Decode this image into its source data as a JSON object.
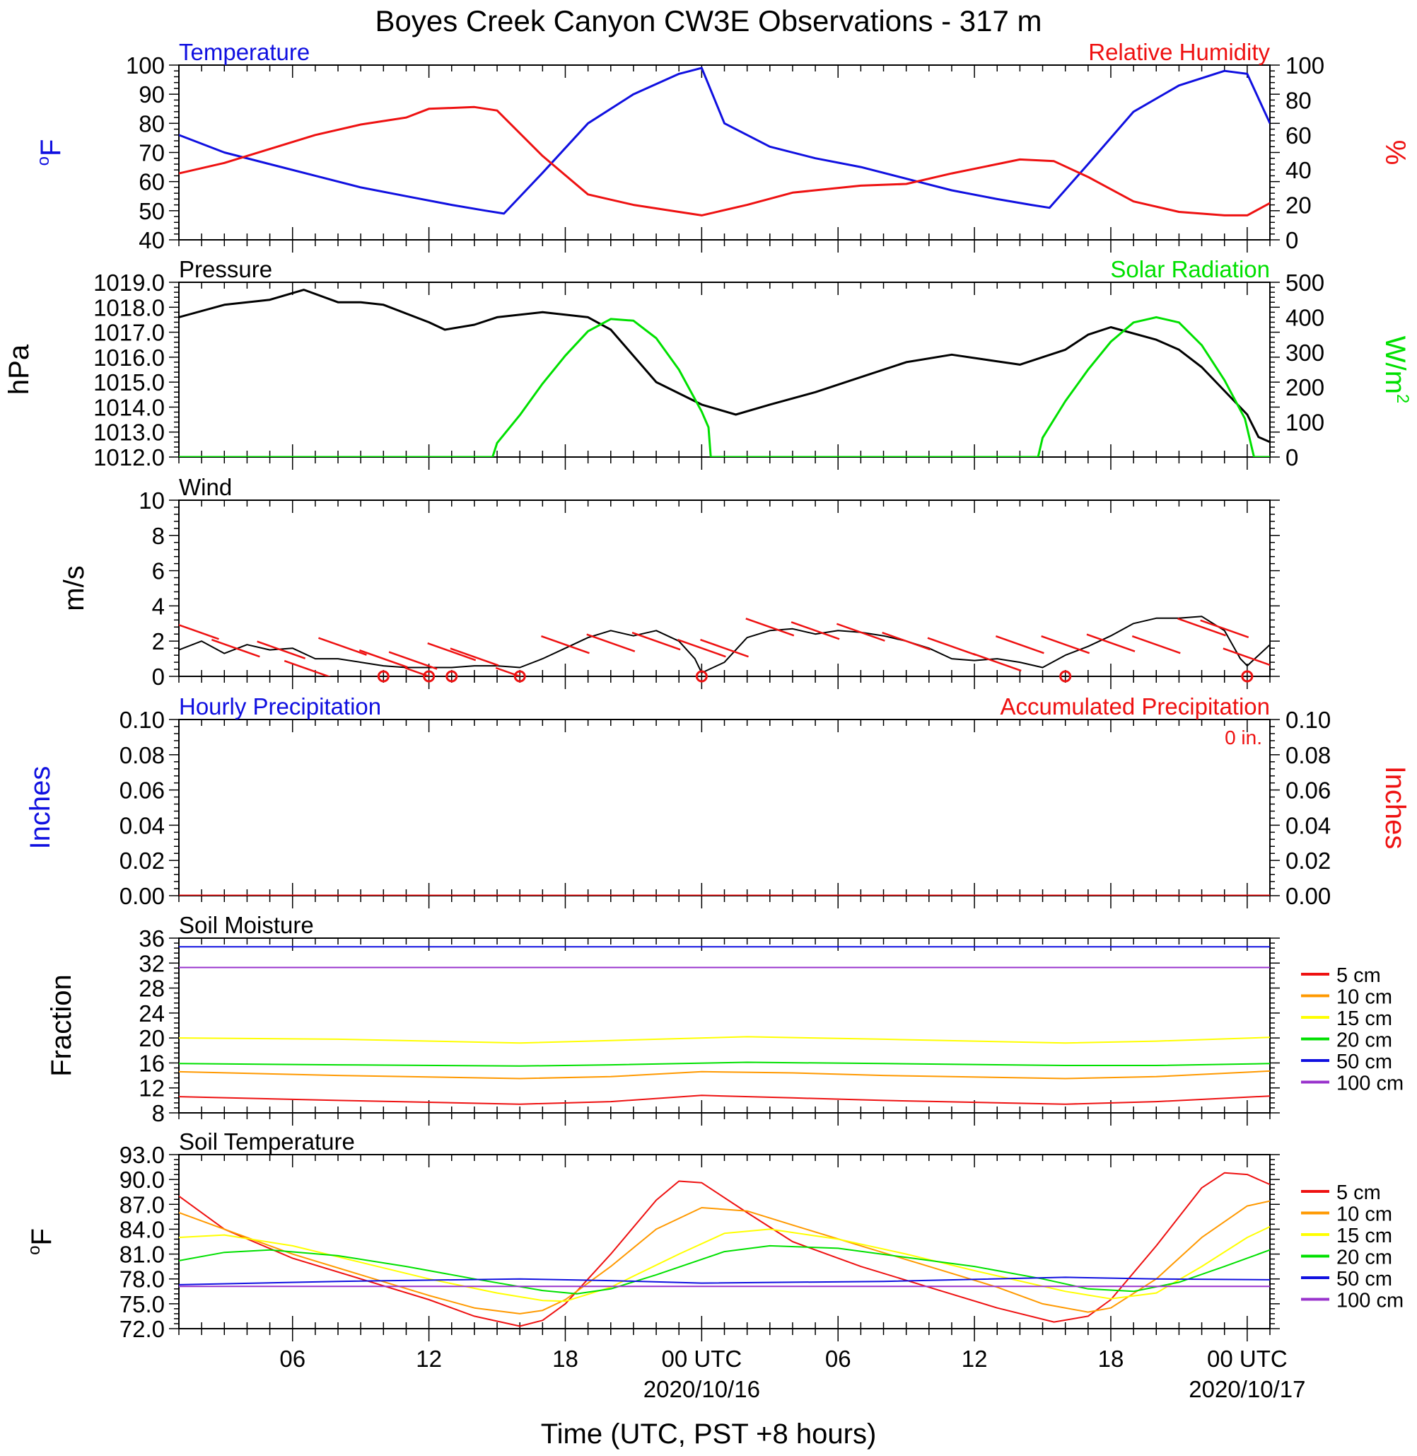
{
  "title": "Boyes Creek Canyon CW3E Observations - 317 m",
  "xlabel": "Time (UTC, PST +8 hours)",
  "x_ticks": [
    {
      "hour": 6,
      "label": "06",
      "date": ""
    },
    {
      "hour": 12,
      "label": "12",
      "date": ""
    },
    {
      "hour": 18,
      "label": "18",
      "date": ""
    },
    {
      "hour": 24,
      "label": "00 UTC",
      "date": "2020/10/16"
    },
    {
      "hour": 30,
      "label": "06",
      "date": ""
    },
    {
      "hour": 36,
      "label": "12",
      "date": ""
    },
    {
      "hour": 42,
      "label": "18",
      "date": ""
    },
    {
      "hour": 48,
      "label": "00 UTC",
      "date": "2020/10/17"
    }
  ],
  "colors": {
    "blue": "#1010e0",
    "red": "#ee1111",
    "green": "#00e000",
    "black": "#000000",
    "orange": "#ff9900",
    "yellow": "#ffff00",
    "purple": "#9933cc"
  },
  "chart_data": [
    {
      "type": "line",
      "panel": "temperature_rh",
      "x_range_hours": [
        1,
        49
      ],
      "left_title": "Temperature",
      "right_title": "Relative Humidity",
      "ylabel_left": "oF",
      "ylabel_right": "%",
      "ylim_left": [
        40,
        100
      ],
      "ylim_right": [
        0,
        100
      ],
      "yticks_left": [
        "40",
        "50",
        "60",
        "70",
        "80",
        "90",
        "100"
      ],
      "yticks_right": [
        "0",
        "20",
        "40",
        "60",
        "80",
        "100"
      ],
      "series": [
        {
          "name": "Temperature",
          "axis": "left",
          "color": "#1010e0",
          "x": [
            1,
            3,
            5,
            7,
            9,
            11,
            13,
            14.5,
            15.3,
            17,
            19,
            21,
            23,
            24,
            25,
            27,
            29,
            31,
            33,
            35,
            37,
            38.5,
            39.3,
            41,
            43,
            45,
            47,
            48,
            49
          ],
          "y": [
            76,
            70,
            66,
            62,
            58,
            55,
            52,
            50,
            49,
            63,
            80,
            90,
            97,
            99,
            80,
            72,
            68,
            65,
            61,
            57,
            54,
            52,
            51,
            66,
            84,
            93,
            98,
            97,
            80
          ]
        },
        {
          "name": "Relative Humidity",
          "axis": "right",
          "color": "#ee1111",
          "x": [
            1,
            3,
            5,
            7,
            9,
            11,
            12,
            14,
            15,
            17,
            19,
            21,
            23,
            24,
            26,
            28,
            31,
            33,
            35,
            38,
            39.5,
            41,
            43,
            45,
            47,
            48,
            49
          ],
          "y": [
            38,
            44,
            52,
            60,
            66,
            70,
            75,
            76,
            74,
            48,
            26,
            20,
            16,
            14,
            20,
            27,
            31,
            32,
            38,
            46,
            45,
            36,
            22,
            16,
            14,
            14,
            21
          ]
        }
      ]
    },
    {
      "type": "line",
      "panel": "pressure_solar",
      "x_range_hours": [
        1,
        49
      ],
      "left_title": "Pressure",
      "right_title": "Solar Radiation",
      "ylabel_left": "hPa",
      "ylabel_right": "W/m2",
      "ylim_left": [
        1012,
        1019
      ],
      "ylim_right": [
        0,
        500
      ],
      "yticks_left": [
        "1012.0",
        "1013.0",
        "1014.0",
        "1015.0",
        "1016.0",
        "1017.0",
        "1018.0",
        "1019.0"
      ],
      "yticks_right": [
        "0",
        "100",
        "200",
        "300",
        "400",
        "500"
      ],
      "series": [
        {
          "name": "Pressure",
          "axis": "left",
          "color": "#000000",
          "x": [
            1,
            3,
            5,
            6.5,
            8,
            9,
            10,
            12,
            12.7,
            14,
            15,
            17,
            19,
            20,
            22,
            24,
            25.5,
            27,
            29,
            31,
            33,
            35,
            36.5,
            38,
            40,
            41,
            42,
            44,
            45,
            46,
            48,
            48.5,
            49
          ],
          "y": [
            1017.6,
            1018.1,
            1018.3,
            1018.7,
            1018.2,
            1018.2,
            1018.1,
            1017.4,
            1017.1,
            1017.3,
            1017.6,
            1017.8,
            1017.6,
            1017.1,
            1015.0,
            1014.1,
            1013.7,
            1014.1,
            1014.6,
            1015.2,
            1015.8,
            1016.1,
            1015.9,
            1015.7,
            1016.3,
            1016.9,
            1017.2,
            1016.7,
            1016.3,
            1015.6,
            1013.7,
            1012.8,
            1012.6
          ]
        },
        {
          "name": "Solar Radiation",
          "axis": "right",
          "color": "#00e000",
          "x": [
            1,
            14.8,
            15.0,
            16,
            17,
            18,
            19,
            20,
            21,
            22,
            23,
            24,
            24.3,
            24.4,
            38.8,
            39.0,
            40,
            41,
            42,
            43,
            44,
            45,
            46,
            47,
            47.9,
            48.3,
            49
          ],
          "y": [
            0,
            0,
            40,
            120,
            210,
            290,
            360,
            395,
            390,
            340,
            250,
            130,
            85,
            0,
            0,
            55,
            160,
            250,
            330,
            385,
            400,
            385,
            320,
            220,
            110,
            0,
            0
          ]
        }
      ]
    },
    {
      "type": "line",
      "panel": "wind",
      "x_range_hours": [
        1,
        49
      ],
      "left_title": "Wind",
      "ylabel": "m/s",
      "ylim": [
        0,
        10
      ],
      "yticks": [
        "0",
        "2",
        "4",
        "6",
        "8",
        "10"
      ],
      "series": [
        {
          "name": "Wind speed",
          "color": "#000000",
          "x": [
            1,
            2,
            3,
            4,
            5,
            6,
            7,
            8,
            9,
            10,
            11,
            12,
            13,
            14,
            15,
            16,
            17,
            18,
            19,
            20,
            21,
            22,
            23,
            23.7,
            24,
            25,
            26,
            27,
            28,
            29,
            30,
            31,
            32,
            33,
            34,
            35,
            36,
            37,
            38,
            39,
            40,
            41,
            42,
            43,
            44,
            45,
            46,
            47,
            47.7,
            48,
            49
          ],
          "y": [
            1.5,
            2.0,
            1.3,
            1.8,
            1.5,
            1.6,
            1.0,
            1.0,
            0.8,
            0.6,
            0.5,
            0.5,
            0.5,
            0.6,
            0.6,
            0.5,
            1.0,
            1.6,
            2.2,
            2.6,
            2.3,
            2.6,
            2.0,
            1.0,
            0.2,
            0.8,
            2.2,
            2.6,
            2.7,
            2.4,
            2.6,
            2.5,
            2.3,
            2.0,
            1.6,
            1.0,
            0.9,
            1.0,
            0.8,
            0.5,
            1.2,
            1.7,
            2.3,
            3.0,
            3.3,
            3.3,
            3.4,
            2.6,
            1.0,
            0.6,
            1.8
          ]
        },
        {
          "name": "Wind barbs",
          "color": "#ee1111",
          "x": [
            1.7,
            3.5,
            5.5,
            6.7,
            8.2,
            10,
            11.3,
            12,
            13,
            14,
            16,
            18,
            20,
            22,
            24,
            25,
            27,
            29,
            31,
            33,
            35,
            37,
            38,
            40,
            42,
            44,
            46,
            47,
            48
          ],
          "y": [
            2.6,
            1.6,
            1.5,
            0.4,
            1.7,
            1.0,
            0.9,
            0.0,
            1.4,
            1.1,
            0.0,
            1.8,
            1.9,
            2.0,
            1.6,
            1.6,
            2.8,
            2.6,
            2.5,
            2.0,
            1.7,
            0.8,
            1.8,
            1.8,
            1.9,
            1.8,
            2.8,
            2.7,
            1.1
          ]
        }
      ],
      "calm_markers_hours": [
        10,
        12,
        13,
        16,
        24,
        40,
        48
      ]
    },
    {
      "type": "line",
      "panel": "precipitation",
      "x_range_hours": [
        1,
        49
      ],
      "left_title": "Hourly Precipitation",
      "right_title": "Accumulated Precipitation",
      "annotation": "0 in.",
      "ylabel_left": "Inches",
      "ylabel_right": "Inches",
      "ylim": [
        0,
        0.1
      ],
      "yticks": [
        "0.00",
        "0.02",
        "0.04",
        "0.06",
        "0.08",
        "0.10"
      ],
      "series": [
        {
          "name": "Hourly Precipitation",
          "color": "#1010e0",
          "x": [
            1,
            49
          ],
          "y": [
            0,
            0
          ]
        },
        {
          "name": "Accumulated Precipitation",
          "color": "#ee1111",
          "x": [
            1,
            49
          ],
          "y": [
            0,
            0
          ]
        }
      ]
    },
    {
      "type": "line",
      "panel": "soil_moisture",
      "x_range_hours": [
        1,
        49
      ],
      "left_title": "Soil Moisture",
      "ylabel": "Fraction",
      "ylim": [
        8,
        36
      ],
      "yticks": [
        "8",
        "12",
        "16",
        "20",
        "24",
        "28",
        "32",
        "36"
      ],
      "legend": [
        "5 cm",
        "10 cm",
        "15 cm",
        "20 cm",
        "50 cm",
        "100 cm"
      ],
      "series": [
        {
          "name": "5 cm",
          "color": "#ee1111",
          "x": [
            1,
            8,
            16,
            20,
            24,
            28,
            32,
            40,
            44,
            49
          ],
          "y": [
            10.6,
            10.0,
            9.4,
            9.8,
            10.8,
            10.4,
            10.0,
            9.4,
            9.8,
            10.7
          ]
        },
        {
          "name": "10 cm",
          "color": "#ff9900",
          "x": [
            1,
            8,
            16,
            20,
            24,
            28,
            32,
            40,
            44,
            49
          ],
          "y": [
            14.6,
            14.0,
            13.5,
            13.8,
            14.6,
            14.4,
            14.0,
            13.5,
            13.8,
            14.7
          ]
        },
        {
          "name": "15 cm",
          "color": "#ffff00",
          "x": [
            1,
            8,
            16,
            20,
            26,
            32,
            40,
            44,
            49
          ],
          "y": [
            20.0,
            19.8,
            19.2,
            19.6,
            20.2,
            19.8,
            19.2,
            19.5,
            20.1
          ]
        },
        {
          "name": "20 cm",
          "color": "#00e000",
          "x": [
            1,
            8,
            16,
            20,
            26,
            32,
            40,
            44,
            49
          ],
          "y": [
            15.9,
            15.7,
            15.5,
            15.7,
            16.1,
            15.9,
            15.6,
            15.6,
            15.9
          ]
        },
        {
          "name": "50 cm",
          "color": "#1010e0",
          "x": [
            1,
            49
          ],
          "y": [
            34.6,
            34.6
          ]
        },
        {
          "name": "100 cm",
          "color": "#9933cc",
          "x": [
            1,
            49
          ],
          "y": [
            31.3,
            31.3
          ]
        }
      ]
    },
    {
      "type": "line",
      "panel": "soil_temperature",
      "x_range_hours": [
        1,
        49
      ],
      "left_title": "Soil Temperature",
      "ylabel": "oF",
      "ylim": [
        72,
        93
      ],
      "yticks": [
        "72.0",
        "75.0",
        "78.0",
        "81.0",
        "84.0",
        "87.0",
        "90.0",
        "93.0"
      ],
      "legend": [
        "5 cm",
        "10 cm",
        "15 cm",
        "20 cm",
        "50 cm",
        "100 cm"
      ],
      "series": [
        {
          "name": "5 cm",
          "color": "#ee1111",
          "x": [
            1,
            3,
            6,
            9,
            12,
            14,
            16,
            17,
            18,
            20,
            22,
            23,
            24,
            26,
            28,
            31,
            34,
            37,
            39.5,
            41,
            42,
            44,
            46,
            47,
            48,
            49
          ],
          "y": [
            88,
            84,
            80.5,
            78,
            75.5,
            73.5,
            72.3,
            73,
            75,
            81,
            87.5,
            89.8,
            89.6,
            86,
            82.5,
            79.5,
            77,
            74.5,
            72.8,
            73.5,
            75.5,
            82,
            89,
            90.8,
            90.6,
            89.4
          ]
        },
        {
          "name": "10 cm",
          "color": "#ff9900",
          "x": [
            1,
            3,
            6,
            9,
            12,
            14,
            16,
            17,
            18,
            20,
            22,
            24,
            26,
            28,
            31,
            34,
            37,
            39,
            41,
            42,
            44,
            46,
            48,
            49
          ],
          "y": [
            86,
            84,
            81,
            78.5,
            76,
            74.5,
            73.8,
            74.2,
            75.5,
            79.5,
            84,
            86.6,
            86.2,
            84.5,
            82,
            79.5,
            77,
            75,
            74,
            74.5,
            78,
            83,
            86.8,
            87.4
          ]
        },
        {
          "name": "15 cm",
          "color": "#ffff00",
          "x": [
            1,
            3,
            6,
            9,
            12,
            15,
            17,
            18,
            20,
            23,
            25,
            27,
            30,
            33,
            36,
            40,
            42,
            44,
            46,
            48,
            49
          ],
          "y": [
            83,
            83.3,
            82,
            80,
            78,
            76.3,
            75.4,
            75.3,
            77,
            81,
            83.5,
            84,
            82.8,
            81,
            79,
            76.5,
            75.6,
            76.3,
            79.5,
            83,
            84.3
          ]
        },
        {
          "name": "20 cm",
          "color": "#00e000",
          "x": [
            1,
            3,
            5,
            8,
            11,
            14,
            17,
            18.5,
            20,
            22,
            25,
            27,
            30,
            33,
            36,
            39,
            41,
            43,
            45,
            47,
            49
          ],
          "y": [
            80.2,
            81.2,
            81.5,
            80.8,
            79.5,
            78,
            76.6,
            76.2,
            76.8,
            78.5,
            81.3,
            82,
            81.7,
            80.6,
            79.5,
            78,
            76.8,
            76.5,
            77.6,
            79.5,
            81.5
          ]
        },
        {
          "name": "50 cm",
          "color": "#1010e0",
          "x": [
            1,
            8,
            16,
            20,
            24,
            32,
            40,
            44,
            49
          ],
          "y": [
            77.3,
            77.7,
            78,
            77.8,
            77.5,
            77.7,
            78.2,
            78,
            77.9
          ]
        },
        {
          "name": "100 cm",
          "color": "#9933cc",
          "x": [
            1,
            24,
            49
          ],
          "y": [
            77.1,
            77.1,
            77.1
          ]
        }
      ]
    }
  ]
}
